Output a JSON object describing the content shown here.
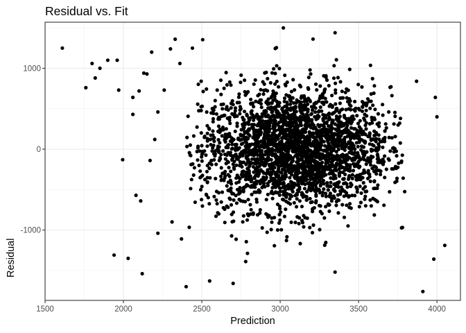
{
  "chart_data": {
    "type": "scatter",
    "title": "Residual vs. Fit",
    "xlabel": "Prediction",
    "ylabel": "Residual",
    "xlim": [
      1500,
      4150
    ],
    "ylim": [
      -1870,
      1570
    ],
    "x_ticks": [
      1500,
      2000,
      2500,
      3000,
      3500,
      4000
    ],
    "x_tick_labels": [
      "1500",
      "2000",
      "2500",
      "3000",
      "3500",
      "4000"
    ],
    "y_ticks": [
      1000,
      0,
      -1000
    ],
    "y_tick_labels": [
      "1000",
      "0",
      "-1000"
    ],
    "grid": true,
    "theme": "bw",
    "point_color": "#000000",
    "cluster": {
      "description_of_bulk": "dense cloud of roughly 2800 points",
      "n_points": 2800,
      "x_mean": 3100,
      "x_sd": 300,
      "y_mean": 0,
      "y_sd": 380,
      "x_range": [
        2400,
        3800
      ],
      "y_range": [
        -1500,
        1500
      ]
    },
    "outliers": {
      "x": [
        1610,
        1760,
        1800,
        1820,
        1850,
        1900,
        1960,
        1970,
        1995,
        2060,
        2080,
        2100,
        2110,
        2130,
        2150,
        2180,
        2200,
        2220,
        2260,
        2300,
        2330,
        2360,
        2440,
        3020,
        3350,
        3870,
        3990,
        4000,
        4050,
        3910,
        3980,
        1940,
        2030,
        2120,
        2060,
        2170,
        2220,
        2310,
        2370,
        2400,
        2550,
        2700,
        2780,
        3350
      ],
      "y": [
        1250,
        760,
        1060,
        880,
        1000,
        1100,
        1100,
        730,
        -130,
        640,
        -570,
        720,
        -640,
        940,
        930,
        1200,
        120,
        460,
        730,
        1240,
        1360,
        1060,
        1250,
        1500,
        1440,
        840,
        640,
        400,
        -1190,
        -1760,
        -1360,
        -1310,
        -1350,
        -1540,
        430,
        -140,
        -1040,
        -900,
        -1110,
        -1700,
        -1630,
        -1660,
        -1390,
        -1520
      ]
    }
  }
}
